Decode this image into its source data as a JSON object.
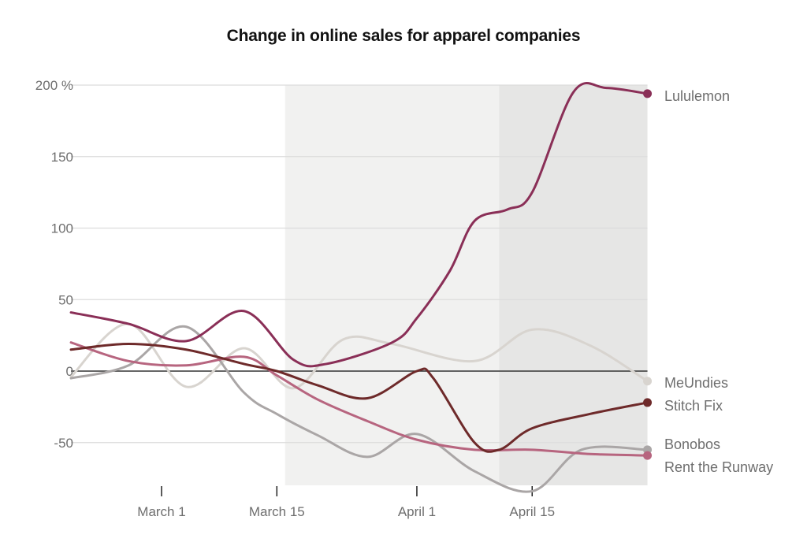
{
  "chart_data": {
    "type": "line",
    "title": "Change in online sales for apparel companies",
    "xlabel": "",
    "ylabel": "",
    "x_unit": "days relative to March 1",
    "xlim": [
      -11,
      59
    ],
    "ylim": [
      -80,
      200
    ],
    "y_ticks": [
      200,
      150,
      100,
      50,
      0,
      -50
    ],
    "y_tick_labels": [
      "200 %",
      "150",
      "100",
      "50",
      "0",
      "-50"
    ],
    "x_ticks": [
      {
        "day": 0,
        "label": "March 1"
      },
      {
        "day": 14,
        "label": "March 15"
      },
      {
        "day": 31,
        "label": "April 1"
      },
      {
        "day": 45,
        "label": "April 15"
      }
    ],
    "grid": true,
    "shaded_periods": [
      {
        "start_day": 15,
        "end_day": 59,
        "color": "#f1f1f0"
      },
      {
        "start_day": 41,
        "end_day": 59,
        "color": "#e6e6e5"
      }
    ],
    "legend_placement": "right (end-of-line labels)",
    "series": [
      {
        "name": "Lululemon",
        "color": "#8a2f57",
        "points": [
          [
            -11,
            41
          ],
          [
            -4,
            33
          ],
          [
            3,
            21
          ],
          [
            10,
            42
          ],
          [
            16,
            8
          ],
          [
            20,
            5
          ],
          [
            28,
            20
          ],
          [
            31,
            37
          ],
          [
            35,
            70
          ],
          [
            38,
            105
          ],
          [
            42,
            113
          ],
          [
            45,
            125
          ],
          [
            50,
            195
          ],
          [
            54,
            198
          ],
          [
            59,
            194
          ]
        ]
      },
      {
        "name": "MeUndies",
        "color": "#d8d4cf",
        "points": [
          [
            -11,
            -4
          ],
          [
            -4,
            33
          ],
          [
            3,
            -11
          ],
          [
            10,
            16
          ],
          [
            16,
            -12
          ],
          [
            22,
            22
          ],
          [
            28,
            19
          ],
          [
            38,
            7
          ],
          [
            45,
            29
          ],
          [
            52,
            18
          ],
          [
            59,
            -7
          ]
        ]
      },
      {
        "name": "Stitch Fix",
        "color": "#6e2a2a",
        "points": [
          [
            -11,
            15
          ],
          [
            -4,
            19
          ],
          [
            3,
            15
          ],
          [
            10,
            5
          ],
          [
            14,
            0
          ],
          [
            19,
            -10
          ],
          [
            25,
            -19
          ],
          [
            31,
            0
          ],
          [
            33,
            -5
          ],
          [
            38,
            -50
          ],
          [
            41,
            -55
          ],
          [
            45,
            -40
          ],
          [
            52,
            -30
          ],
          [
            59,
            -22
          ]
        ]
      },
      {
        "name": "Bonobos",
        "color": "#aaa6a6",
        "points": [
          [
            -11,
            -5
          ],
          [
            -4,
            4
          ],
          [
            3,
            31
          ],
          [
            10,
            -15
          ],
          [
            14,
            -30
          ],
          [
            19,
            -45
          ],
          [
            25,
            -60
          ],
          [
            31,
            -44
          ],
          [
            38,
            -70
          ],
          [
            45,
            -84
          ],
          [
            51,
            -55
          ],
          [
            59,
            -55
          ]
        ]
      },
      {
        "name": "Rent the Runway",
        "color": "#b7657f",
        "points": [
          [
            -11,
            20
          ],
          [
            -4,
            7
          ],
          [
            3,
            4
          ],
          [
            10,
            10
          ],
          [
            14,
            -3
          ],
          [
            19,
            -20
          ],
          [
            25,
            -35
          ],
          [
            31,
            -48
          ],
          [
            38,
            -55
          ],
          [
            45,
            -55
          ],
          [
            52,
            -58
          ],
          [
            59,
            -59
          ]
        ]
      }
    ]
  }
}
